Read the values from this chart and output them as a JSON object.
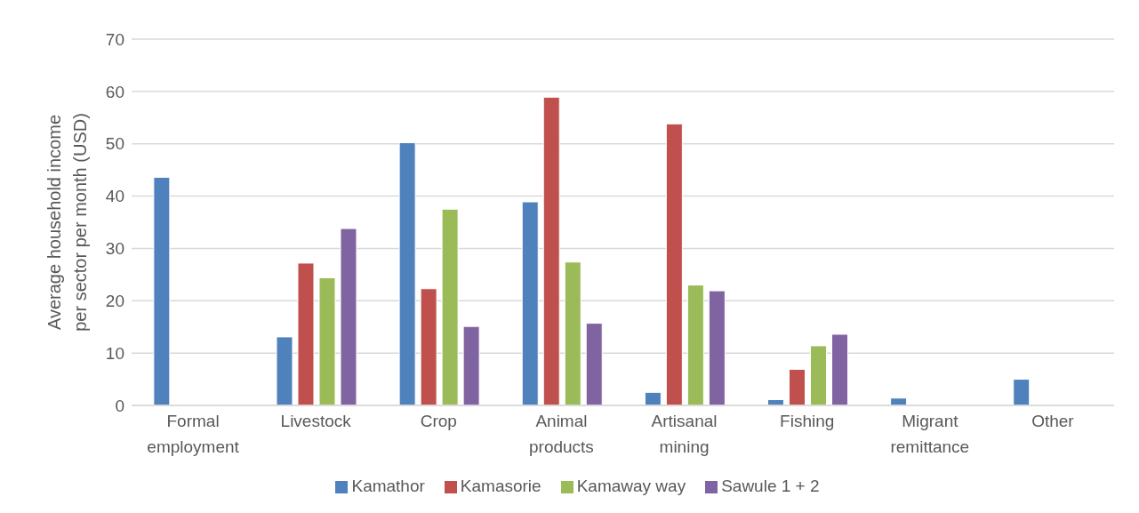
{
  "chart_data": {
    "type": "bar",
    "ylabel": "Average household income per sector per month (USD)",
    "categories": [
      "Formal employment",
      "Livestock",
      "Crop",
      "Animal products",
      "Artisanal mining",
      "Fishing",
      "Migrant remittance",
      "Other"
    ],
    "series": [
      {
        "name": "Kamathor",
        "color": "#4f81bd",
        "values": [
          43.6,
          13.1,
          50.2,
          38.9,
          2.5,
          1.1,
          1.4,
          5.0
        ]
      },
      {
        "name": "Kamasorie",
        "color": "#c0504d",
        "values": [
          null,
          27.2,
          22.3,
          58.9,
          53.8,
          6.9,
          null,
          null
        ]
      },
      {
        "name": "Kamaway way",
        "color": "#9bbb59",
        "values": [
          null,
          24.4,
          37.5,
          27.4,
          23.0,
          11.4,
          null,
          null
        ]
      },
      {
        "name": "Sawule 1 + 2",
        "color": "#8064a2",
        "values": [
          null,
          33.8,
          15.1,
          15.7,
          21.9,
          13.6,
          null,
          null
        ]
      }
    ],
    "ylim": [
      0,
      70
    ],
    "yticks": [
      0,
      10,
      20,
      30,
      40,
      50,
      60,
      70
    ],
    "grid": "y",
    "legend": "bottom"
  }
}
